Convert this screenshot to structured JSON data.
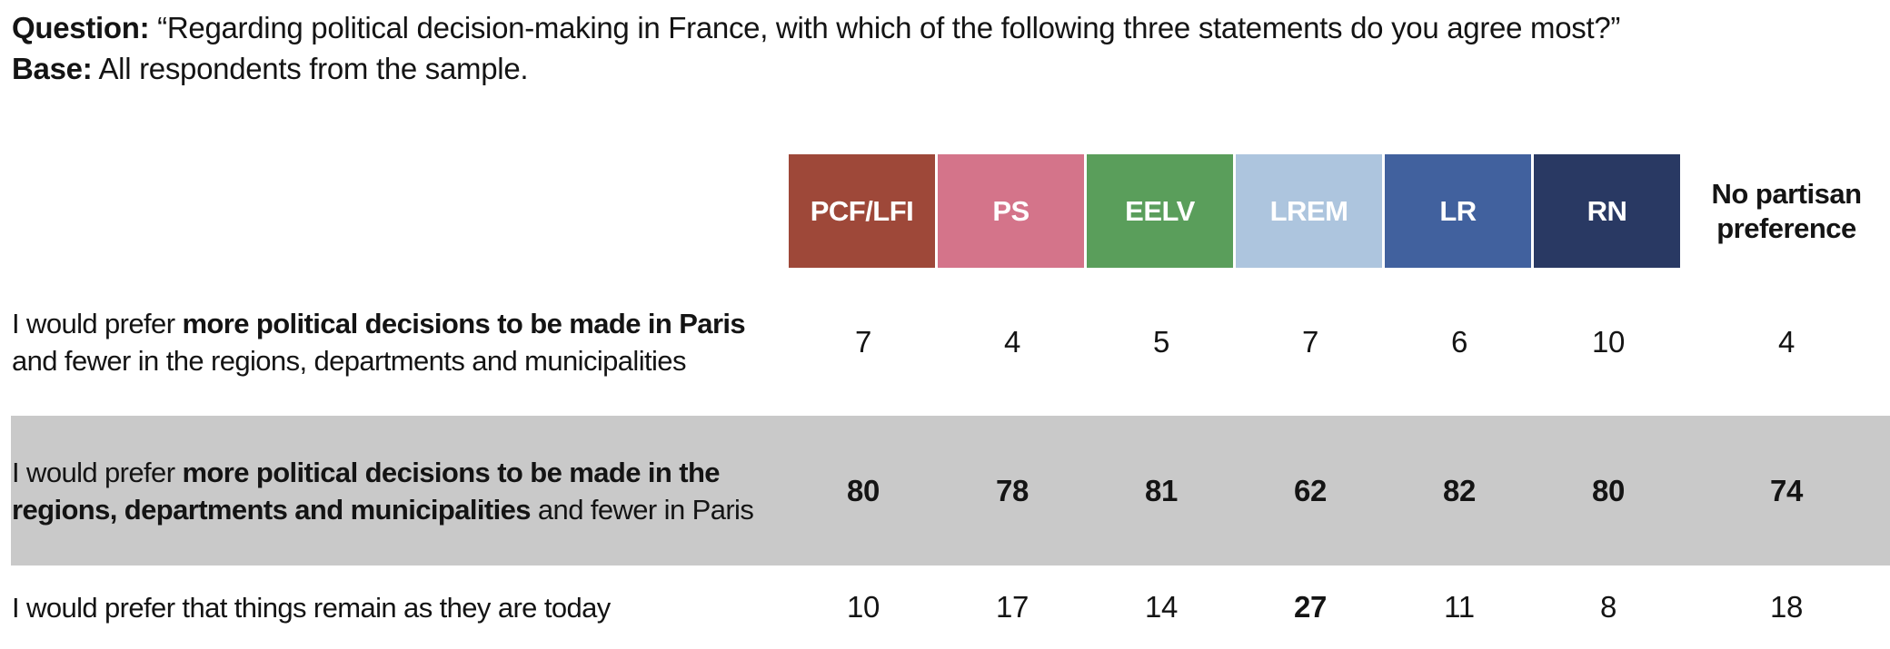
{
  "meta": {
    "question_label": "Question:",
    "question_text": "“Regarding political decision-making in France, with which of the following three statements do you agree most?”",
    "base_label": "Base:",
    "base_text": "All respondents from the sample."
  },
  "table": {
    "columns": [
      {
        "label": "PCF/LFI",
        "color": "#9E4839"
      },
      {
        "label": "PS",
        "color": "#D4748A"
      },
      {
        "label": "EELV",
        "color": "#5A9E5B"
      },
      {
        "label": "LREM",
        "color": "#ADC5DE"
      },
      {
        "label": "LR",
        "color": "#41619E"
      },
      {
        "label": "RN",
        "color": "#293963"
      }
    ],
    "no_preference_header": "No partisan preference",
    "row_highlight_color": "#C9C9C9",
    "rows": [
      {
        "statement": {
          "pre": "I would prefer ",
          "bold": "more political decisions to be made in Paris",
          "post": " and fewer in the regions, departments and municipalities"
        },
        "values": [
          "7",
          "4",
          "5",
          "7",
          "6",
          "10",
          "4"
        ]
      },
      {
        "statement": {
          "pre": "I would prefer ",
          "bold": "more political decisions to be made in the regions, departments and municipalities",
          "post": " and fewer in Paris"
        },
        "values": [
          "80",
          "78",
          "81",
          "62",
          "82",
          "80",
          "74"
        ]
      },
      {
        "statement": {
          "pre": "I would prefer that things remain as they are today",
          "bold": "",
          "post": ""
        },
        "values": [
          "10",
          "17",
          "14",
          "27",
          "11",
          "8",
          "18"
        ]
      }
    ]
  },
  "chart_data": {
    "type": "table",
    "title": "Regarding political decision-making in France, with which of the following three statements do you agree most?",
    "base": "All respondents from the sample.",
    "categories": [
      "PCF/LFI",
      "PS",
      "EELV",
      "LREM",
      "LR",
      "RN",
      "No partisan preference"
    ],
    "series": [
      {
        "name": "I would prefer more political decisions to be made in Paris and fewer in the regions, departments and municipalities",
        "values": [
          7,
          4,
          5,
          7,
          6,
          10,
          4
        ]
      },
      {
        "name": "I would prefer more political decisions to be made in the regions, departments and municipalities and fewer in Paris",
        "values": [
          80,
          78,
          81,
          62,
          82,
          80,
          74
        ]
      },
      {
        "name": "I would prefer that things remain as they are today",
        "values": [
          10,
          17,
          14,
          27,
          11,
          8,
          18
        ]
      }
    ],
    "column_colors": [
      "#9E4839",
      "#D4748A",
      "#5A9E5B",
      "#ADC5DE",
      "#41619E",
      "#293963",
      null
    ],
    "highlighted_row_index": 1,
    "highlight_color": "#C9C9C9"
  }
}
